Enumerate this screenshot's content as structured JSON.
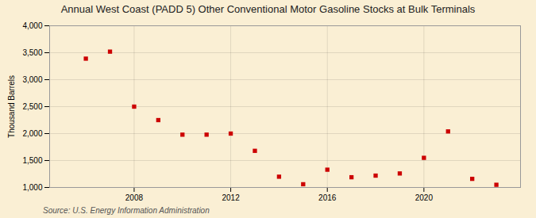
{
  "chart_data": {
    "type": "scatter",
    "title": "Annual West Coast (PADD 5) Other Conventional Motor Gasoline Stocks at Bulk Terminals",
    "ylabel": "Thousand Barrels",
    "annotation": "Source: U.S. Energy Information Administration",
    "x": [
      2006,
      2007,
      2008,
      2009,
      2010,
      2011,
      2012,
      2013,
      2014,
      2015,
      2016,
      2017,
      2018,
      2019,
      2020,
      2021,
      2022,
      2023
    ],
    "values": [
      3390,
      3520,
      2500,
      2250,
      1980,
      1980,
      2000,
      1680,
      1200,
      1060,
      1330,
      1190,
      1220,
      1260,
      1550,
      2040,
      1160,
      1050
    ],
    "color": "#cc0000",
    "marker": "square",
    "xlim": [
      2004.5,
      2024
    ],
    "xticks": [
      2008,
      2012,
      2016,
      2020
    ],
    "ylim": [
      1000,
      4000
    ],
    "yticks": [
      {
        "value": 1000,
        "label": "1,000"
      },
      {
        "value": 1500,
        "label": "1,500"
      },
      {
        "value": 2000,
        "label": "2,000"
      },
      {
        "value": 2500,
        "label": "2,500"
      },
      {
        "value": 3000,
        "label": "3,000"
      },
      {
        "value": 3500,
        "label": "3,500"
      },
      {
        "value": 4000,
        "label": "4,000"
      }
    ],
    "grid": true
  }
}
